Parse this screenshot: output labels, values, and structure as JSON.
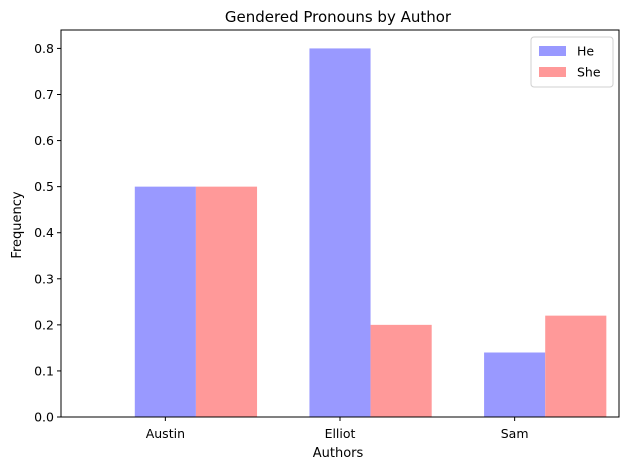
{
  "chart_data": {
    "type": "bar",
    "title": "Gendered Pronouns by Author",
    "xlabel": "Authors",
    "ylabel": "Frequency",
    "categories": [
      "Austin",
      "Elliot",
      "Sam"
    ],
    "series": [
      {
        "name": "He",
        "values": [
          0.5,
          0.8,
          0.14
        ],
        "color": "#9999ff"
      },
      {
        "name": "She",
        "values": [
          0.5,
          0.2,
          0.22
        ],
        "color": "#ff9999"
      }
    ],
    "ylim": [
      0,
      0.84
    ],
    "yticks": [
      "0.0",
      "0.1",
      "0.2",
      "0.3",
      "0.4",
      "0.5",
      "0.6",
      "0.7",
      "0.8"
    ],
    "grid": false,
    "legend_position": "top-right"
  }
}
